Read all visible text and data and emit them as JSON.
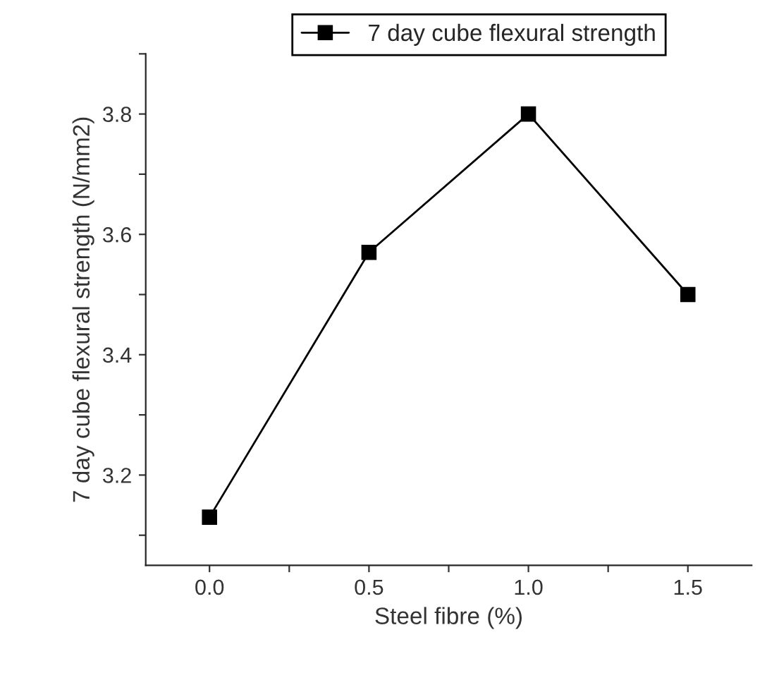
{
  "chart_data": {
    "type": "line",
    "xlabel": "Steel fibre (%)",
    "ylabel": "7 day cube flexural strength (N/mm2)",
    "x": [
      0.0,
      0.5,
      1.0,
      1.5
    ],
    "series": [
      {
        "name": "7 day cube flexural strength",
        "color": "#000000",
        "values": [
          3.13,
          3.57,
          3.8,
          3.5
        ]
      }
    ],
    "marker": "square",
    "line_style": "solid",
    "legend": "top",
    "grid": false,
    "xlim": [
      -0.2,
      1.7
    ],
    "ylim": [
      3.05,
      3.9
    ],
    "xticks": [
      {
        "value": 0.0,
        "label": "0.0"
      },
      {
        "value": 0.25,
        "label": null
      },
      {
        "value": 0.5,
        "label": "0.5"
      },
      {
        "value": 0.75,
        "label": null
      },
      {
        "value": 1.0,
        "label": "1.0"
      },
      {
        "value": 1.25,
        "label": null
      },
      {
        "value": 1.5,
        "label": "1.5"
      }
    ],
    "yticks": [
      {
        "value": 3.1,
        "label": null
      },
      3.2,
      {
        "value": 3.3,
        "label": null
      },
      3.4,
      {
        "value": 3.5,
        "label": null
      },
      3.6,
      {
        "value": 3.7,
        "label": null
      },
      3.8,
      {
        "value": 3.9,
        "label": null
      }
    ]
  }
}
